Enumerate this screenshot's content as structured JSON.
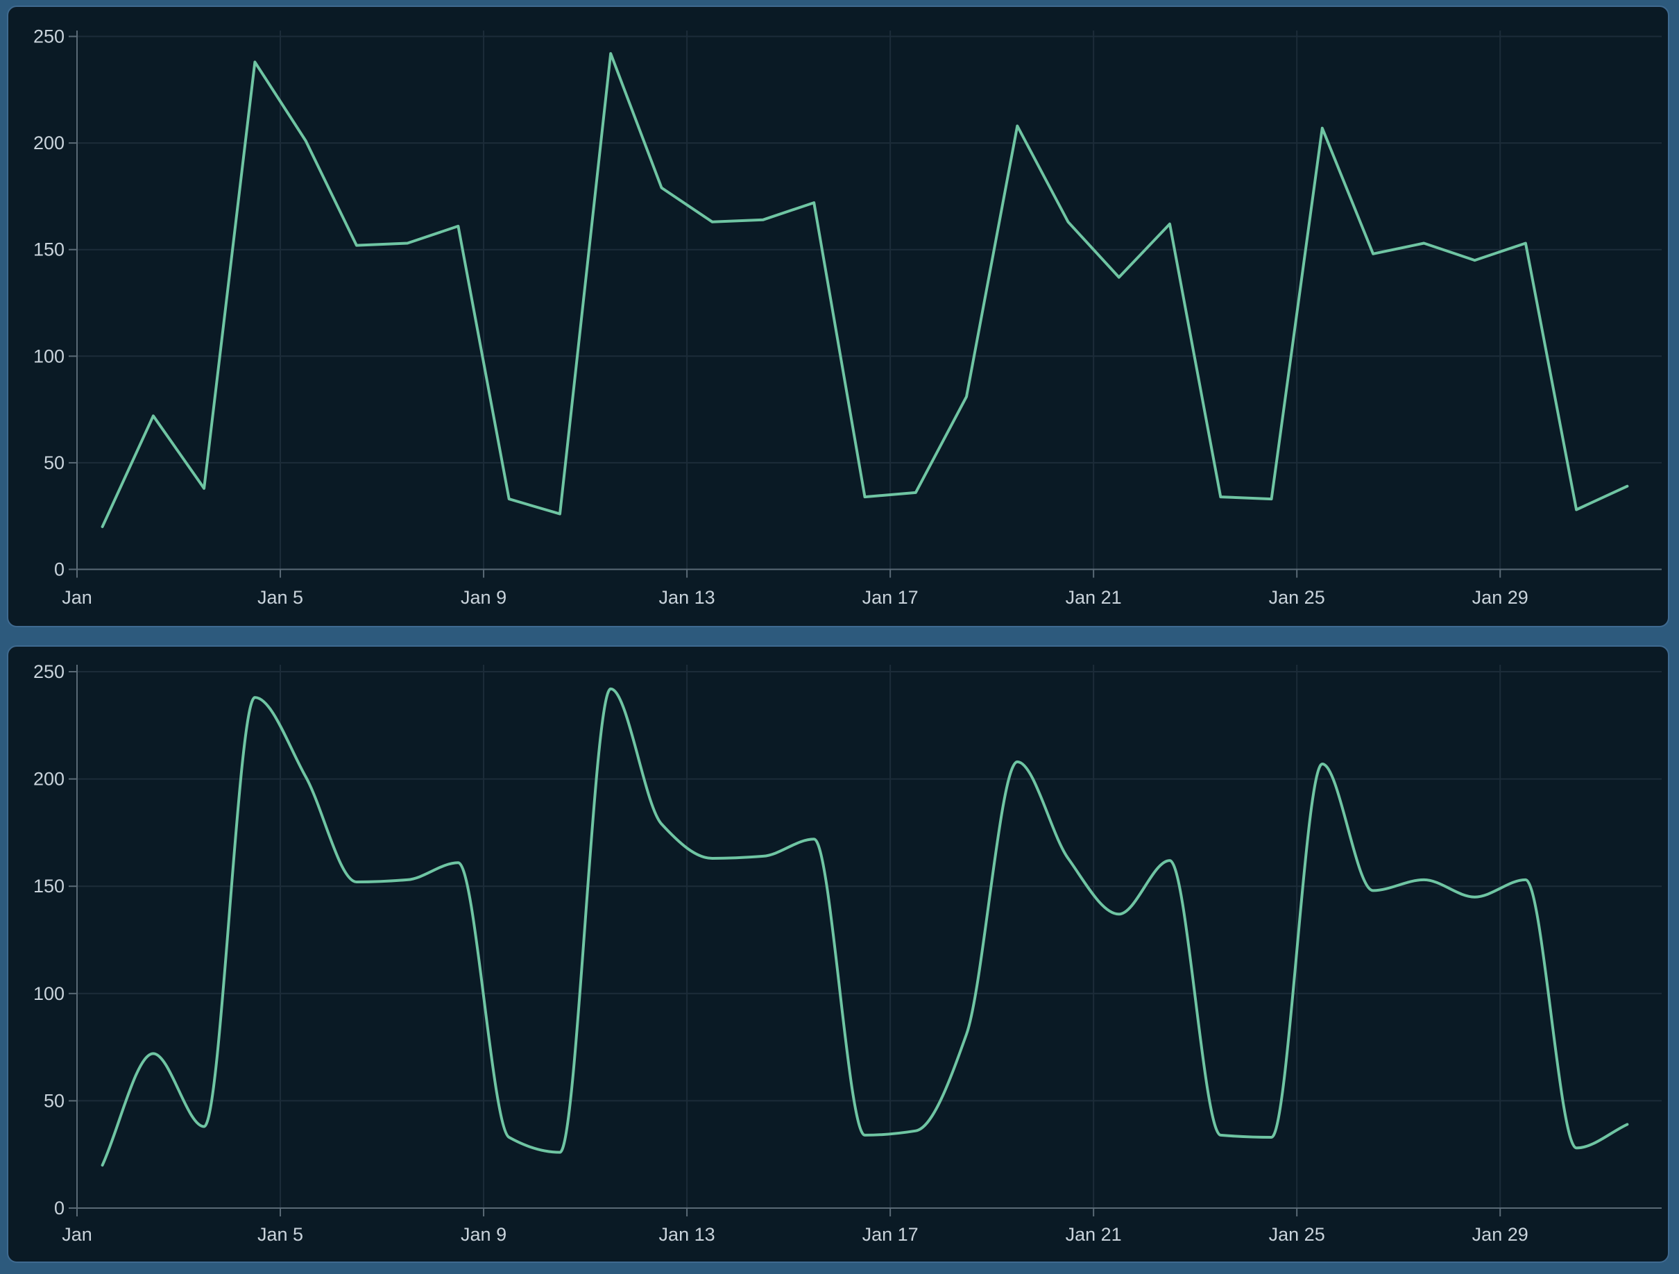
{
  "page": {
    "background_color": "#2d5a7d",
    "panel_background_color": "#0a1a25",
    "panel_border_color": "#3f6a90",
    "gridline_color": "#1c2c39",
    "axis_color": "#5a6a76",
    "tick_label_color": "#c9d3db",
    "series_line_color": "#6fc5a3"
  },
  "chart_data": [
    {
      "type": "line",
      "title": "",
      "smooth": false,
      "line_color": "#6fc5a3",
      "grid": true,
      "legend_position": "none",
      "xlabel": "",
      "ylabel": "",
      "ylim": [
        0,
        250
      ],
      "y_ticks": [
        0,
        50,
        100,
        150,
        200,
        250
      ],
      "y_tick_labels": [
        "0",
        "50",
        "100",
        "150",
        "200",
        "250"
      ],
      "x_tick_labels": [
        "Jan",
        "Jan 5",
        "Jan 9",
        "Jan 13",
        "Jan 17",
        "Jan 21",
        "Jan 25",
        "Jan 29"
      ],
      "x_tick_every_days": 4,
      "categories": [
        "Jan 1",
        "Jan 2",
        "Jan 3",
        "Jan 4",
        "Jan 5",
        "Jan 6",
        "Jan 7",
        "Jan 8",
        "Jan 9",
        "Jan 10",
        "Jan 11",
        "Jan 12",
        "Jan 13",
        "Jan 14",
        "Jan 15",
        "Jan 16",
        "Jan 17",
        "Jan 18",
        "Jan 19",
        "Jan 20",
        "Jan 21",
        "Jan 22",
        "Jan 23",
        "Jan 24",
        "Jan 25",
        "Jan 26",
        "Jan 27",
        "Jan 28",
        "Jan 29",
        "Jan 30",
        "Jan 31"
      ],
      "values": [
        20,
        72,
        38,
        238,
        201,
        152,
        153,
        161,
        33,
        26,
        242,
        179,
        163,
        164,
        172,
        34,
        36,
        81,
        208,
        163,
        137,
        162,
        34,
        33,
        207,
        148,
        153,
        145,
        153,
        28,
        39
      ]
    },
    {
      "type": "line",
      "title": "",
      "smooth": true,
      "line_color": "#6fc5a3",
      "grid": true,
      "legend_position": "none",
      "xlabel": "",
      "ylabel": "",
      "ylim": [
        0,
        250
      ],
      "y_ticks": [
        0,
        50,
        100,
        150,
        200,
        250
      ],
      "y_tick_labels": [
        "0",
        "50",
        "100",
        "150",
        "200",
        "250"
      ],
      "x_tick_labels": [
        "Jan",
        "Jan 5",
        "Jan 9",
        "Jan 13",
        "Jan 17",
        "Jan 21",
        "Jan 25",
        "Jan 29"
      ],
      "x_tick_every_days": 4,
      "categories": [
        "Jan 1",
        "Jan 2",
        "Jan 3",
        "Jan 4",
        "Jan 5",
        "Jan 6",
        "Jan 7",
        "Jan 8",
        "Jan 9",
        "Jan 10",
        "Jan 11",
        "Jan 12",
        "Jan 13",
        "Jan 14",
        "Jan 15",
        "Jan 16",
        "Jan 17",
        "Jan 18",
        "Jan 19",
        "Jan 20",
        "Jan 21",
        "Jan 22",
        "Jan 23",
        "Jan 24",
        "Jan 25",
        "Jan 26",
        "Jan 27",
        "Jan 28",
        "Jan 29",
        "Jan 30",
        "Jan 31"
      ],
      "values": [
        20,
        72,
        38,
        238,
        201,
        152,
        153,
        161,
        33,
        26,
        242,
        179,
        163,
        164,
        172,
        34,
        36,
        81,
        208,
        163,
        137,
        162,
        34,
        33,
        207,
        148,
        153,
        145,
        153,
        28,
        39
      ]
    }
  ]
}
